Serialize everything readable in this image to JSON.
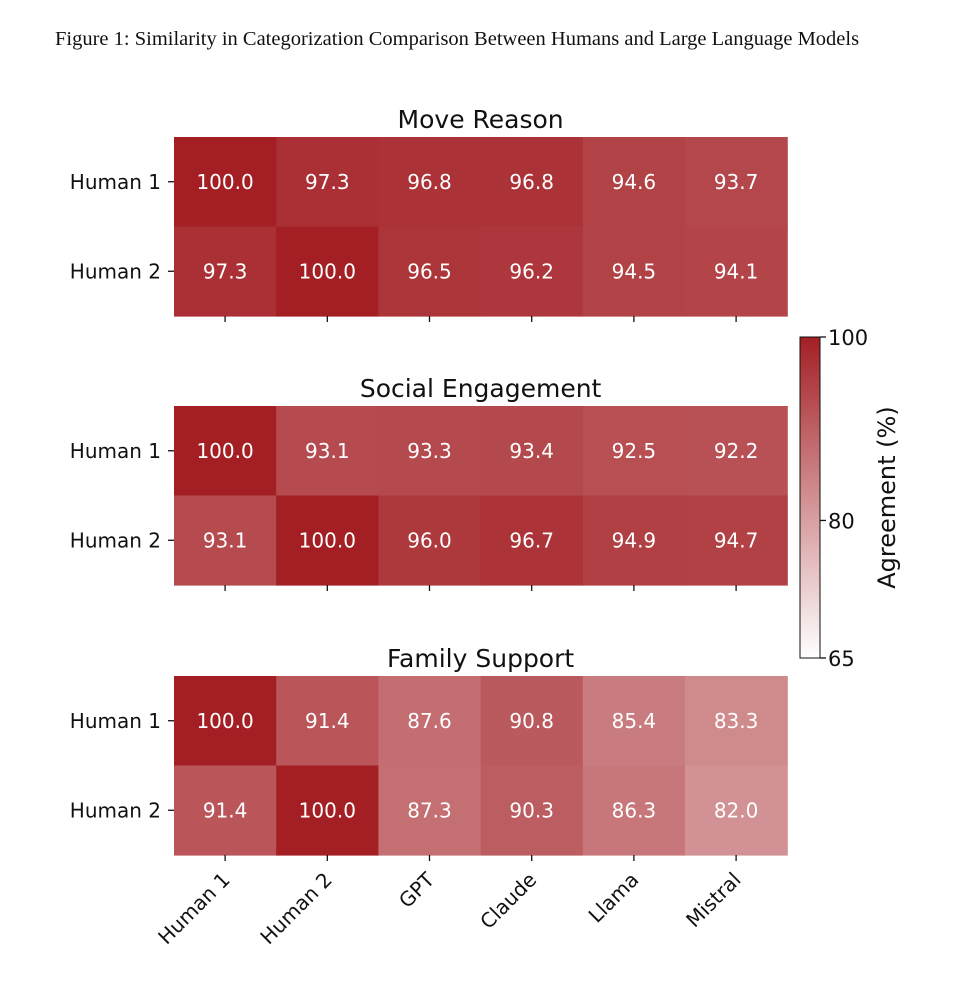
{
  "caption": "Figure 1: Similarity in Categorization Comparison Between Humans and Large Language Models",
  "chart_data": {
    "type": "heatmap",
    "x_labels": [
      "Human 1",
      "Human 2",
      "GPT",
      "Claude",
      "Llama",
      "Mistral"
    ],
    "y_labels": [
      "Human 1",
      "Human 2"
    ],
    "panels": [
      {
        "title": "Move Reason",
        "values": [
          [
            100.0,
            97.3,
            96.8,
            96.8,
            94.6,
            93.7
          ],
          [
            97.3,
            100.0,
            96.5,
            96.2,
            94.5,
            94.1
          ]
        ]
      },
      {
        "title": "Social Engagement",
        "values": [
          [
            100.0,
            93.1,
            93.3,
            93.4,
            92.5,
            92.2
          ],
          [
            93.1,
            100.0,
            96.0,
            96.7,
            94.9,
            94.7
          ]
        ]
      },
      {
        "title": "Family Support",
        "values": [
          [
            100.0,
            91.4,
            87.6,
            90.8,
            85.4,
            83.3
          ],
          [
            91.4,
            100.0,
            87.3,
            90.3,
            86.3,
            82.0
          ]
        ]
      }
    ],
    "colorbar": {
      "label": "Agreement (%)",
      "min": 65,
      "max": 100,
      "ticks": [
        65,
        80,
        100
      ],
      "color_low": "#ffffff",
      "color_high": "#a31f24"
    }
  }
}
